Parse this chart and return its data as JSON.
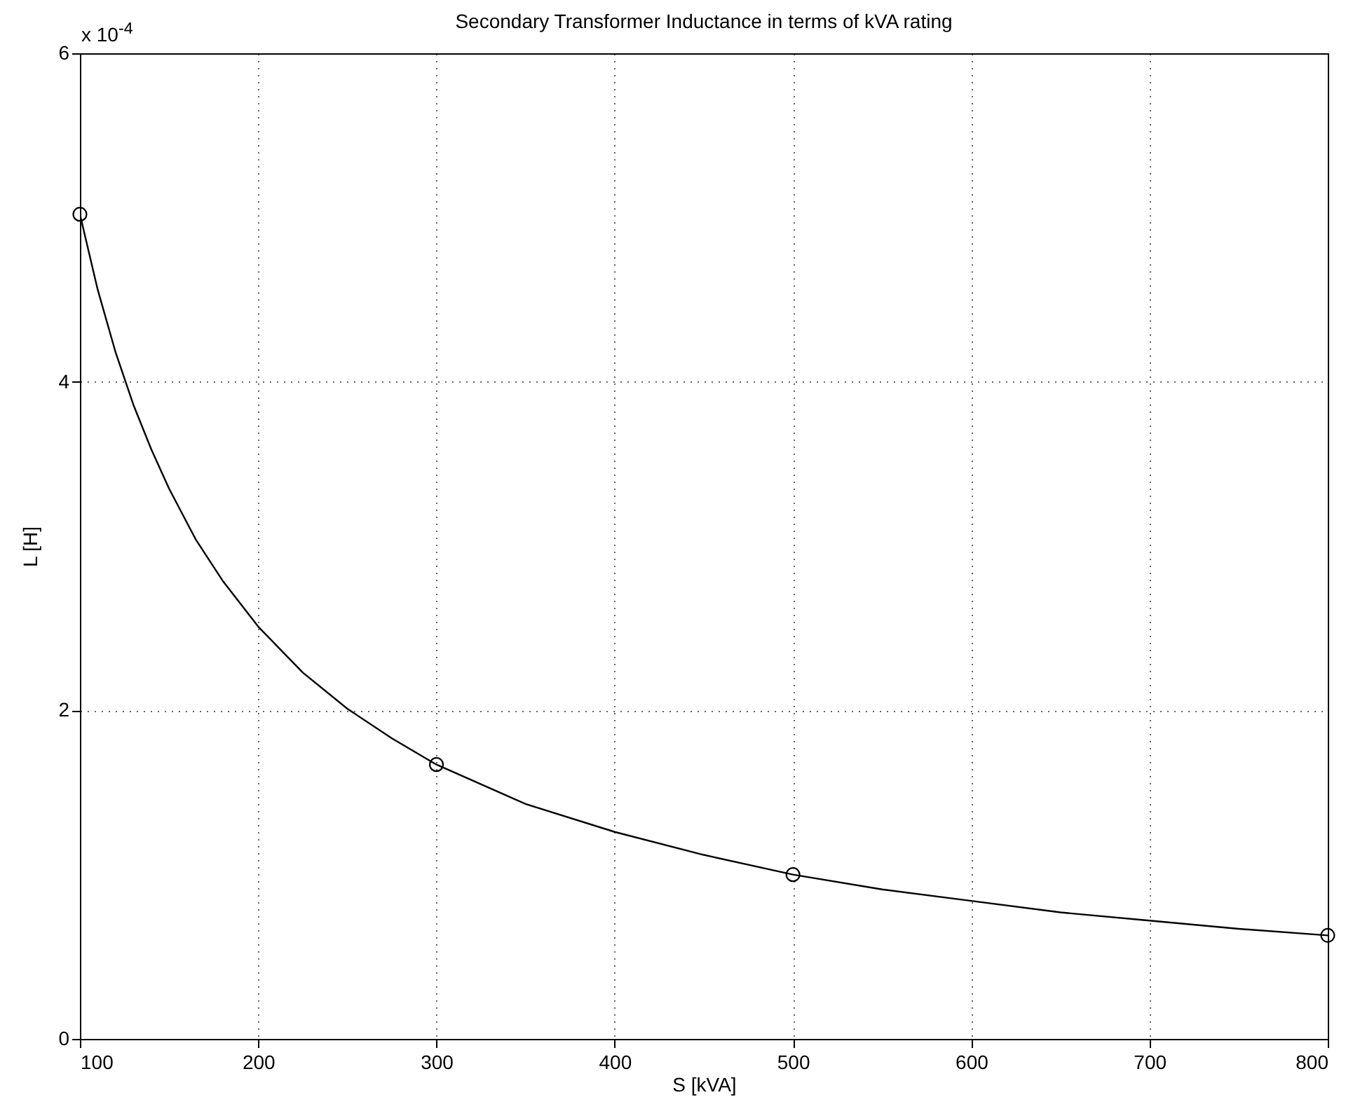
{
  "chart_data": {
    "type": "line",
    "title": "Secondary Transformer Inductance in terms of kVA rating",
    "xlabel": "S [kVA]",
    "ylabel": "L [H]",
    "annotations": [
      "x 10$^{-4}$"
    ],
    "xlim": [
      100,
      800
    ],
    "xticks": [
      100,
      200,
      300,
      400,
      500,
      600,
      700,
      800
    ],
    "ylim": [
      0,
      6
    ],
    "yticks": [
      0,
      2,
      4,
      6
    ],
    "grid": true,
    "series": [
      {
        "color": "#000000",
        "x": [
          100,
          110,
          120,
          130,
          140,
          150,
          165,
          180,
          200,
          225,
          250,
          275,
          300,
          350,
          400,
          450,
          500,
          550,
          600,
          650,
          700,
          750,
          800
        ],
        "values": [
          5.02,
          4.56,
          4.18,
          3.86,
          3.59,
          3.35,
          3.04,
          2.79,
          2.51,
          2.23,
          2.01,
          1.83,
          1.67,
          1.43,
          1.26,
          1.12,
          1.0,
          0.91,
          0.84,
          0.77,
          0.72,
          0.67,
          0.63
        ]
      },
      {
        "type": "scatter",
        "marker": "circle",
        "color": "#000000",
        "x": [
          100,
          300,
          500,
          800
        ],
        "values": [
          5.02,
          1.67,
          1.0,
          0.63
        ]
      }
    ]
  }
}
